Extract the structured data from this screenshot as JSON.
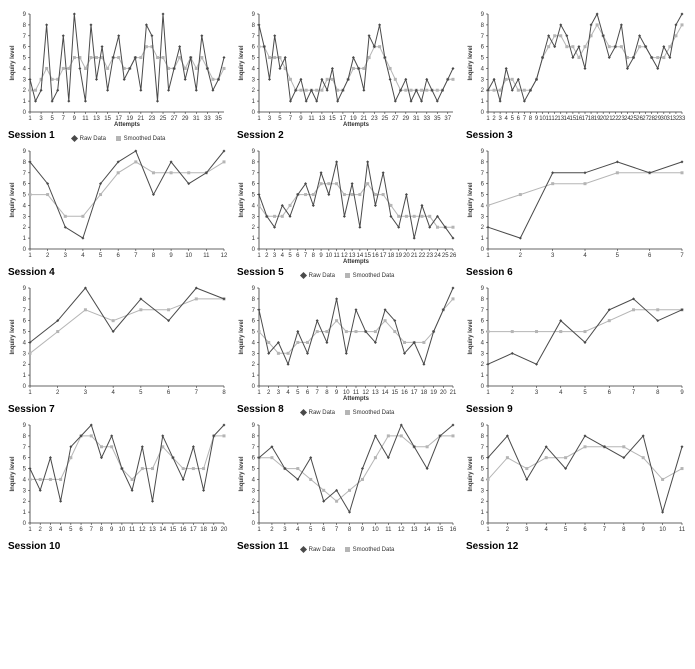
{
  "global": {
    "background_color": "#ffffff",
    "raw_color": "#4a4a4a",
    "smoothed_color": "#b5b5b5",
    "axis_color": "#333333",
    "ylim": [
      0,
      9
    ],
    "ytick_step": 1,
    "label_fontsize": 6,
    "title_fontsize": 10,
    "marker_radius": 1.5,
    "line_width": 1,
    "y_axis_label": "Inquiry level",
    "x_axis_label": "Attempts",
    "legend_raw": "Raw Data",
    "legend_smoothed": "Smoothed Data"
  },
  "sessions": [
    {
      "title": "Session 1",
      "x_labels": [
        1,
        3,
        5,
        7,
        9,
        11,
        13,
        15,
        17,
        19,
        21,
        23,
        25,
        27,
        29,
        31,
        33,
        35
      ],
      "x_count": 36,
      "raw": [
        3,
        1,
        2,
        8,
        1,
        2,
        7,
        1,
        9,
        4,
        1,
        8,
        3,
        6,
        2,
        5,
        7,
        3,
        4,
        5,
        2,
        8,
        7,
        1,
        9,
        2,
        4,
        6,
        3,
        5,
        2,
        7,
        4,
        2,
        3,
        5
      ],
      "smoothed": [
        2,
        2,
        3,
        4,
        3,
        3,
        4,
        4,
        5,
        5,
        4,
        5,
        5,
        5,
        4,
        5,
        5,
        4,
        4,
        5,
        5,
        6,
        6,
        5,
        5,
        4,
        4,
        5,
        4,
        5,
        4,
        5,
        4,
        3,
        3,
        4
      ],
      "show_xlabel": true,
      "show_legend": true,
      "legend_pos": "bottom"
    },
    {
      "title": "Session 2",
      "x_labels": [
        1,
        3,
        5,
        7,
        9,
        11,
        13,
        15,
        17,
        19,
        21,
        23,
        25,
        27,
        29,
        31,
        33,
        35,
        37
      ],
      "x_count": 38,
      "raw": [
        8,
        6,
        3,
        7,
        4,
        5,
        1,
        2,
        3,
        1,
        2,
        1,
        3,
        2,
        4,
        1,
        2,
        3,
        5,
        4,
        2,
        7,
        6,
        8,
        5,
        3,
        1,
        2,
        3,
        1,
        2,
        1,
        3,
        2,
        1,
        2,
        3,
        4
      ],
      "smoothed": [
        6,
        6,
        5,
        5,
        5,
        4,
        3,
        2,
        2,
        2,
        2,
        2,
        2,
        3,
        3,
        2,
        2,
        3,
        4,
        4,
        4,
        5,
        6,
        6,
        5,
        4,
        3,
        2,
        2,
        2,
        2,
        2,
        2,
        2,
        2,
        2,
        3,
        3
      ],
      "show_xlabel": true,
      "show_legend": false
    },
    {
      "title": "Session 3",
      "x_labels": [
        1,
        2,
        3,
        4,
        5,
        6,
        7,
        8,
        9,
        10,
        11,
        12,
        13,
        14,
        15,
        16,
        17,
        18,
        19,
        20,
        21,
        22,
        23,
        24,
        25,
        26,
        27,
        28,
        29,
        30,
        31,
        32,
        33
      ],
      "x_count": 33,
      "raw": [
        2,
        3,
        1,
        4,
        2,
        3,
        1,
        2,
        3,
        5,
        7,
        6,
        8,
        7,
        5,
        6,
        4,
        8,
        9,
        7,
        5,
        6,
        8,
        4,
        5,
        7,
        6,
        5,
        4,
        6,
        5,
        8,
        9
      ],
      "smoothed": [
        2,
        2,
        2,
        3,
        3,
        2,
        2,
        2,
        3,
        5,
        6,
        7,
        7,
        6,
        6,
        5,
        6,
        7,
        8,
        7,
        6,
        6,
        6,
        5,
        5,
        6,
        6,
        5,
        5,
        5,
        6,
        7,
        8
      ],
      "show_xlabel": false,
      "show_legend": false
    },
    {
      "title": "Session 4",
      "x_labels": [
        1,
        2,
        3,
        4,
        5,
        6,
        7,
        8,
        9,
        10,
        11,
        12
      ],
      "x_count": 12,
      "raw": [
        8,
        6,
        2,
        1,
        6,
        8,
        9,
        5,
        8,
        6,
        7,
        9
      ],
      "smoothed": [
        5,
        5,
        3,
        3,
        5,
        7,
        8,
        7,
        7,
        7,
        7,
        8
      ],
      "show_xlabel": false,
      "show_legend": false
    },
    {
      "title": "Session 5",
      "x_labels": [
        1,
        2,
        3,
        4,
        5,
        6,
        7,
        8,
        9,
        10,
        11,
        12,
        13,
        14,
        15,
        16,
        17,
        18,
        19,
        20,
        21,
        22,
        23,
        24,
        25,
        26
      ],
      "x_count": 26,
      "raw": [
        5,
        3,
        2,
        4,
        3,
        5,
        6,
        4,
        7,
        5,
        8,
        3,
        6,
        2,
        8,
        4,
        7,
        3,
        2,
        5,
        1,
        4,
        2,
        3,
        2,
        1
      ],
      "smoothed": [
        4,
        3,
        3,
        3,
        4,
        5,
        5,
        5,
        6,
        6,
        6,
        5,
        5,
        5,
        6,
        5,
        5,
        4,
        3,
        3,
        3,
        3,
        3,
        2,
        2,
        2
      ],
      "show_xlabel": true,
      "show_legend": true,
      "legend_pos": "bottom"
    },
    {
      "title": "Session 6",
      "x_labels": [
        1,
        2,
        3,
        4,
        5,
        6,
        7
      ],
      "x_count": 7,
      "raw": [
        2,
        1,
        7,
        7,
        8,
        7,
        8
      ],
      "smoothed": [
        4,
        5,
        6,
        6,
        7,
        7,
        7
      ],
      "show_xlabel": false,
      "show_legend": false
    },
    {
      "title": "Session 7",
      "x_labels": [
        1,
        2,
        3,
        4,
        5,
        6,
        7,
        8
      ],
      "x_count": 8,
      "raw": [
        4,
        6,
        9,
        5,
        8,
        6,
        9,
        8
      ],
      "smoothed": [
        3,
        5,
        7,
        6,
        7,
        7,
        8,
        8
      ],
      "show_xlabel": false,
      "show_legend": false
    },
    {
      "title": "Session 8",
      "x_labels": [
        1,
        2,
        3,
        4,
        5,
        6,
        7,
        8,
        9,
        10,
        11,
        12,
        13,
        14,
        15,
        16,
        17,
        18,
        19,
        20,
        21
      ],
      "x_count": 21,
      "raw": [
        7,
        3,
        4,
        2,
        5,
        3,
        6,
        4,
        8,
        3,
        7,
        5,
        4,
        7,
        6,
        3,
        4,
        2,
        5,
        7,
        9
      ],
      "smoothed": [
        5,
        4,
        3,
        3,
        4,
        4,
        5,
        5,
        6,
        5,
        5,
        5,
        5,
        6,
        5,
        4,
        4,
        4,
        5,
        7,
        8
      ],
      "show_xlabel": true,
      "show_legend": true,
      "legend_pos": "bottom"
    },
    {
      "title": "Session 9",
      "x_labels": [
        1,
        2,
        3,
        4,
        5,
        6,
        7,
        8,
        9
      ],
      "x_count": 9,
      "raw": [
        2,
        3,
        2,
        6,
        4,
        7,
        8,
        6,
        7
      ],
      "smoothed": [
        5,
        5,
        5,
        5,
        5,
        6,
        7,
        7,
        7
      ],
      "show_xlabel": false,
      "show_legend": false
    },
    {
      "title": "Session 10",
      "x_labels": [
        1,
        2,
        3,
        4,
        5,
        6,
        7,
        8,
        9,
        10,
        11,
        12,
        13,
        14,
        15,
        16,
        17,
        18,
        19,
        20
      ],
      "x_count": 20,
      "raw": [
        5,
        3,
        6,
        2,
        7,
        8,
        9,
        6,
        8,
        5,
        3,
        7,
        2,
        8,
        6,
        4,
        7,
        3,
        8,
        9
      ],
      "smoothed": [
        4,
        4,
        4,
        4,
        6,
        8,
        8,
        7,
        7,
        5,
        4,
        5,
        5,
        7,
        6,
        5,
        5,
        5,
        8,
        8
      ],
      "show_xlabel": false,
      "show_legend": false
    },
    {
      "title": "Session 11",
      "x_labels": [
        1,
        2,
        3,
        4,
        5,
        6,
        7,
        8,
        9,
        10,
        11,
        12,
        13,
        14,
        15,
        16
      ],
      "x_count": 16,
      "raw": [
        6,
        7,
        5,
        4,
        6,
        2,
        3,
        1,
        5,
        8,
        6,
        9,
        7,
        5,
        8,
        9
      ],
      "smoothed": [
        6,
        6,
        5,
        5,
        4,
        3,
        2,
        3,
        4,
        6,
        8,
        8,
        7,
        7,
        8,
        8
      ],
      "show_xlabel": false,
      "show_legend": true,
      "legend_pos": "bottom"
    },
    {
      "title": "Session 12",
      "x_labels": [
        1,
        2,
        3,
        4,
        5,
        6,
        7,
        8,
        9,
        10,
        11
      ],
      "x_count": 11,
      "raw": [
        6,
        8,
        4,
        7,
        5,
        8,
        7,
        6,
        8,
        1,
        7
      ],
      "smoothed": [
        4,
        6,
        5,
        6,
        6,
        7,
        7,
        7,
        6,
        4,
        5
      ],
      "show_xlabel": false,
      "show_legend": false
    }
  ]
}
